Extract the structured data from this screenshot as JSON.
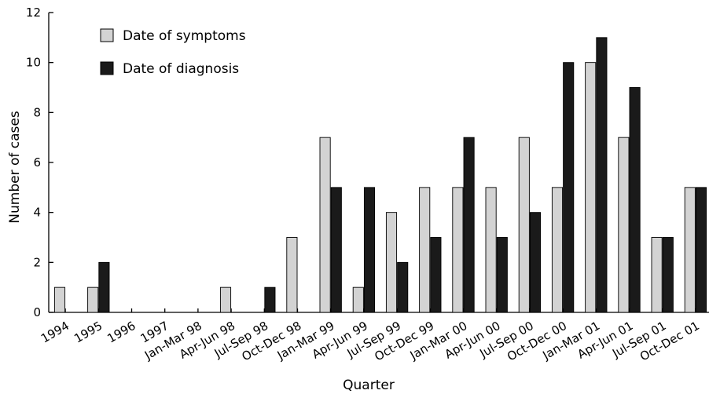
{
  "chart_data": {
    "type": "bar",
    "categories": [
      "1994",
      "1995",
      "1996",
      "1997",
      "Jan-Mar 98",
      "Apr-Jun 98",
      "Jul-Sep 98",
      "Oct-Dec 98",
      "Jan-Mar 99",
      "Apr-Jun 99",
      "Jul-Sep 99",
      "Oct-Dec 99",
      "Jan-Mar 00",
      "Apr-Jun 00",
      "Jul-Sep 00",
      "Oct-Dec 00",
      "Jan-Mar 01",
      "Apr-Jun 01",
      "Jul-Sep 01",
      "Oct-Dec 01"
    ],
    "series": [
      {
        "name": "Date of symptoms",
        "color": "#d3d3d3",
        "values": [
          1,
          1,
          0,
          0,
          0,
          1,
          0,
          3,
          7,
          1,
          4,
          5,
          5,
          5,
          7,
          5,
          10,
          7,
          3,
          5
        ]
      },
      {
        "name": "Date of diagnosis",
        "color": "#1a1a1a",
        "values": [
          0,
          2,
          0,
          0,
          0,
          0,
          1,
          0,
          5,
          5,
          2,
          3,
          7,
          3,
          4,
          10,
          11,
          9,
          3,
          5
        ]
      }
    ],
    "xlabel": "Quarter",
    "ylabel": "Number of cases",
    "ylim": [
      0,
      12
    ],
    "yticks": [
      0,
      2,
      4,
      6,
      8,
      10,
      12
    ],
    "grid": false,
    "legend_position": "top-left"
  }
}
